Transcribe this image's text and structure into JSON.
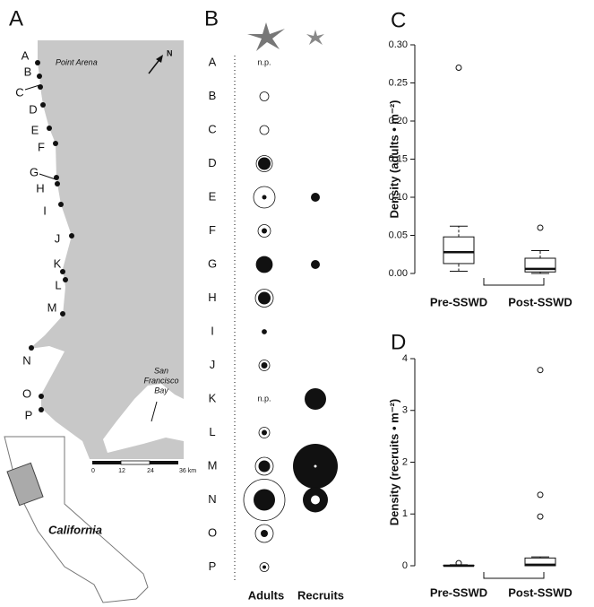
{
  "map": {
    "label": "A",
    "sites": [
      "A",
      "B",
      "C",
      "D",
      "E",
      "F",
      "G",
      "H",
      "I",
      "J",
      "K",
      "L",
      "M",
      "N",
      "O",
      "P"
    ],
    "place": "Point Arena",
    "bay": [
      "San",
      "Francisco",
      "Bay"
    ],
    "north": "N",
    "state": "California",
    "scale": [
      "0",
      "12",
      "24",
      "36 km"
    ]
  },
  "bubble_panel": {
    "label": "B",
    "categories": [
      "A",
      "B",
      "C",
      "D",
      "E",
      "F",
      "G",
      "H",
      "I",
      "J",
      "K",
      "L",
      "M",
      "N",
      "O",
      "P"
    ],
    "series": [
      {
        "name": "Adults",
        "outer_fill": "none",
        "inner_fill": "#111",
        "values": [
          null,
          5,
          5,
          9,
          12,
          7,
          9,
          10,
          2.5,
          6,
          null,
          6,
          10,
          23,
          10,
          5
        ],
        "inner_values": [
          null,
          0,
          0,
          7,
          2.5,
          3,
          9,
          7,
          2.5,
          3.5,
          null,
          3,
          6.5,
          12,
          4,
          2
        ],
        "value_labels": [
          "n.p.",
          null,
          null,
          null,
          null,
          null,
          null,
          null,
          null,
          null,
          "n.p.",
          null,
          null,
          null,
          null,
          null
        ]
      },
      {
        "name": "Recruits",
        "outer_fill": "#111",
        "inner_fill": "#fff",
        "values": [
          null,
          null,
          null,
          null,
          5,
          null,
          5,
          null,
          null,
          null,
          12,
          null,
          25,
          14,
          null,
          null
        ],
        "inner_values": [
          null,
          null,
          null,
          null,
          0,
          null,
          0,
          null,
          null,
          null,
          0,
          null,
          1.5,
          5,
          null,
          null
        ]
      }
    ]
  },
  "chart_data": [
    {
      "type": "box",
      "label": "C",
      "ylabel": "Density (adults • m⁻²)",
      "categories": [
        "Pre-SSWD",
        "Post-SSWD"
      ],
      "boxes": [
        {
          "whislo": 0.003,
          "q1": 0.013,
          "med": 0.028,
          "q3": 0.048,
          "whishi": 0.062,
          "fliers": [
            0.27
          ]
        },
        {
          "whislo": 0,
          "q1": 0.002,
          "med": 0.006,
          "q3": 0.02,
          "whishi": 0.03,
          "fliers": [
            0.06
          ]
        }
      ],
      "ylim": [
        0,
        0.3
      ],
      "yticks": [
        {
          "value": 0,
          "label": "0.00"
        },
        {
          "value": 0.05,
          "label": "0.05"
        },
        {
          "value": 0.1,
          "label": "0.10"
        },
        {
          "value": 0.15,
          "label": "0.15"
        },
        {
          "value": 0.2,
          "label": "0.20"
        },
        {
          "value": 0.25,
          "label": "0.25"
        },
        {
          "value": 0.3,
          "label": "0.30"
        }
      ]
    },
    {
      "type": "box",
      "label": "D",
      "ylabel": "Density (recruits • m⁻²)",
      "categories": [
        "Pre-SSWD",
        "Post-SSWD"
      ],
      "boxes": [
        {
          "whislo": 0,
          "q1": 0,
          "med": 0,
          "q3": 0.01,
          "whishi": 0.02,
          "fliers": [
            0.05
          ]
        },
        {
          "whislo": 0,
          "q1": 0,
          "med": 0.02,
          "q3": 0.15,
          "whishi": 0.17,
          "fliers": [
            0.95,
            1.37,
            3.78
          ]
        }
      ],
      "ylim": [
        0,
        4
      ],
      "yticks": [
        0,
        1,
        2,
        3,
        4
      ]
    }
  ]
}
